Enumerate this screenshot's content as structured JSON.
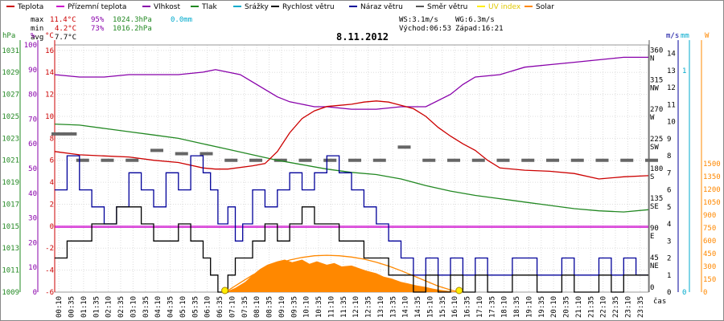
{
  "chart_data": {
    "type": "line",
    "title": "8.11.2012",
    "x_ticks": [
      "00:10",
      "00:35",
      "01:10",
      "01:35",
      "02:10",
      "02:35",
      "03:10",
      "03:35",
      "04:10",
      "04:35",
      "05:10",
      "05:35",
      "06:10",
      "06:35",
      "07:10",
      "07:35",
      "08:10",
      "08:35",
      "09:10",
      "09:35",
      "10:10",
      "10:35",
      "11:10",
      "11:35",
      "12:10",
      "12:35",
      "13:10",
      "13:35",
      "14:10",
      "14:35",
      "15:10",
      "15:35",
      "16:10",
      "16:35",
      "17:10",
      "17:35",
      "18:10",
      "18:35",
      "19:10",
      "19:35",
      "20:10",
      "20:35",
      "21:10",
      "21:35",
      "22:10",
      "22:35",
      "23:10",
      "23:35"
    ],
    "xlabel": "čas",
    "legend": [
      {
        "name": "Teplota",
        "color": "#cc0000"
      },
      {
        "name": "Přízemní teplota",
        "color": "#cc00cc"
      },
      {
        "name": "Vlhkost",
        "color": "#8800aa"
      },
      {
        "name": "Tlak",
        "color": "#228822"
      },
      {
        "name": "Srážky",
        "color": "#00aacc"
      },
      {
        "name": "Rychlost větru",
        "color": "#000000"
      },
      {
        "name": "Náraz větru",
        "color": "#000099"
      },
      {
        "name": "Směr větru",
        "color": "#555555"
      },
      {
        "name": "UV index",
        "color": "#ffee00"
      },
      {
        "name": "Solar",
        "color": "#ff8800"
      }
    ],
    "stats": {
      "max_label": "max",
      "max_temp": "11.4°C",
      "max_hum": "95%",
      "max_press": "1024.3hPa",
      "max_rain": "0.0mm",
      "min_label": "min",
      "min_temp": "4.2°C",
      "min_hum": "73%",
      "min_press": "1016.2hPa",
      "avg_label": "avg",
      "avg_temp": "7.7°C"
    },
    "wind_info": {
      "ws": "WS:3.1m/s",
      "wg": "WG:6.3m/s",
      "sunrise": "Východ:06:53",
      "sunset": "Západ:16:21"
    },
    "axes": {
      "hpa": {
        "unit": "hPa",
        "ticks": [
          "1031",
          "1029",
          "1027",
          "1025",
          "1023",
          "1021",
          "1019",
          "1017",
          "1015",
          "1013",
          "1011",
          "1009"
        ]
      },
      "pct": {
        "unit": "%",
        "ticks": [
          "100",
          "90",
          "80",
          "70",
          "60",
          "50",
          "40",
          "30",
          "20",
          "10",
          "0"
        ]
      },
      "degc": {
        "unit": "°C",
        "ticks": [
          "16",
          "14",
          "12",
          "10",
          "8",
          "6",
          "4",
          "2",
          "0",
          "-2",
          "-4",
          "-6"
        ]
      },
      "dir": {
        "ticks": [
          "360",
          "315",
          "270",
          "225",
          "180",
          "135",
          "90",
          "45",
          "0"
        ],
        "labels": [
          "N",
          "NW",
          "W",
          "SW",
          "S",
          "SE",
          "E",
          "NE",
          ""
        ]
      },
      "ms": {
        "unit": "m/s",
        "ticks": [
          "14",
          "13",
          "12",
          "11",
          "10",
          "9",
          "8",
          "7",
          "6",
          "5",
          "4",
          "3",
          "2",
          "1",
          "0"
        ]
      },
      "mm": {
        "unit": "mm",
        "ticks": [
          "1",
          "0"
        ]
      },
      "w": {
        "unit": "W",
        "ticks": [
          "1500",
          "1350",
          "1200",
          "1050",
          "900",
          "750",
          "600",
          "450",
          "300",
          "150",
          "0"
        ]
      }
    },
    "temperature": [
      [
        0,
        6.8
      ],
      [
        1,
        6.5
      ],
      [
        2,
        6.4
      ],
      [
        3,
        6.3
      ],
      [
        4,
        6.0
      ],
      [
        5,
        5.8
      ],
      [
        6,
        5.3
      ],
      [
        6.5,
        5.2
      ],
      [
        7,
        5.2
      ],
      [
        8,
        5.5
      ],
      [
        8.5,
        5.7
      ],
      [
        9,
        6.8
      ],
      [
        9.5,
        8.5
      ],
      [
        10,
        9.8
      ],
      [
        10.5,
        10.5
      ],
      [
        11,
        10.9
      ],
      [
        11.5,
        11.0
      ],
      [
        12,
        11.1
      ],
      [
        12.5,
        11.3
      ],
      [
        13,
        11.4
      ],
      [
        13.5,
        11.3
      ],
      [
        14,
        11.0
      ],
      [
        14.5,
        10.7
      ],
      [
        15,
        10.0
      ],
      [
        15.5,
        9.0
      ],
      [
        16,
        8.2
      ],
      [
        16.5,
        7.5
      ],
      [
        17,
        6.9
      ],
      [
        17.5,
        6.0
      ],
      [
        18,
        5.3
      ],
      [
        19,
        5.1
      ],
      [
        20,
        5.0
      ],
      [
        21,
        4.8
      ],
      [
        22,
        4.3
      ],
      [
        23,
        4.5
      ],
      [
        24,
        4.6
      ]
    ],
    "humidity": [
      [
        0,
        88
      ],
      [
        1,
        87
      ],
      [
        2,
        87
      ],
      [
        3,
        88
      ],
      [
        4,
        88
      ],
      [
        5,
        88
      ],
      [
        6,
        89
      ],
      [
        6.5,
        90
      ],
      [
        7,
        89
      ],
      [
        7.5,
        88
      ],
      [
        8,
        85
      ],
      [
        8.5,
        82
      ],
      [
        9,
        79
      ],
      [
        9.5,
        77
      ],
      [
        10,
        76
      ],
      [
        10.5,
        75
      ],
      [
        11,
        75
      ],
      [
        12,
        74
      ],
      [
        13,
        74
      ],
      [
        14,
        75
      ],
      [
        15,
        75
      ],
      [
        16,
        80
      ],
      [
        16.5,
        84
      ],
      [
        17,
        87
      ],
      [
        18,
        88
      ],
      [
        19,
        91
      ],
      [
        20,
        92
      ],
      [
        21,
        93
      ],
      [
        22,
        94
      ],
      [
        23,
        95
      ],
      [
        24,
        95
      ]
    ],
    "pressure": [
      [
        0,
        1024.3
      ],
      [
        1,
        1024.2
      ],
      [
        2,
        1023.9
      ],
      [
        3,
        1023.6
      ],
      [
        4,
        1023.3
      ],
      [
        5,
        1023.0
      ],
      [
        6,
        1022.5
      ],
      [
        7,
        1022.0
      ],
      [
        8,
        1021.5
      ],
      [
        9,
        1021.0
      ],
      [
        10,
        1020.6
      ],
      [
        11,
        1020.2
      ],
      [
        12,
        1019.9
      ],
      [
        13,
        1019.7
      ],
      [
        14,
        1019.3
      ],
      [
        15,
        1018.7
      ],
      [
        16,
        1018.2
      ],
      [
        17,
        1017.8
      ],
      [
        18,
        1017.5
      ],
      [
        19,
        1017.2
      ],
      [
        20,
        1016.9
      ],
      [
        21,
        1016.6
      ],
      [
        22,
        1016.4
      ],
      [
        23,
        1016.3
      ],
      [
        24,
        1016.5
      ]
    ],
    "ground_temperature_const": -0.1,
    "wind_speed": [
      [
        0,
        2
      ],
      [
        0.5,
        3
      ],
      [
        1,
        3
      ],
      [
        1.5,
        4
      ],
      [
        2,
        4
      ],
      [
        2.5,
        5
      ],
      [
        3,
        5
      ],
      [
        3.5,
        4
      ],
      [
        4,
        3
      ],
      [
        4.5,
        3
      ],
      [
        5,
        4
      ],
      [
        5.5,
        3
      ],
      [
        6,
        2
      ],
      [
        6.3,
        1
      ],
      [
        6.6,
        0
      ],
      [
        7,
        1
      ],
      [
        7.3,
        2
      ],
      [
        7.6,
        2
      ],
      [
        8,
        3
      ],
      [
        8.5,
        4
      ],
      [
        9,
        3
      ],
      [
        9.5,
        4
      ],
      [
        10,
        5
      ],
      [
        10.5,
        4
      ],
      [
        11,
        4
      ],
      [
        11.5,
        3
      ],
      [
        12,
        3
      ],
      [
        12.5,
        2
      ],
      [
        13,
        2
      ],
      [
        13.5,
        1
      ],
      [
        14,
        1
      ],
      [
        14.5,
        0
      ],
      [
        15,
        1
      ],
      [
        15.5,
        0
      ],
      [
        16,
        1
      ],
      [
        16.5,
        0
      ],
      [
        17,
        1
      ],
      [
        17.5,
        0
      ],
      [
        18,
        0
      ],
      [
        18.5,
        1
      ],
      [
        19,
        1
      ],
      [
        19.5,
        0
      ],
      [
        20,
        0
      ],
      [
        20.5,
        1
      ],
      [
        21,
        0
      ],
      [
        21.5,
        0
      ],
      [
        22,
        1
      ],
      [
        22.5,
        0
      ],
      [
        23,
        1
      ],
      [
        23.5,
        1
      ],
      [
        24,
        1
      ]
    ],
    "wind_gust": [
      [
        0,
        6
      ],
      [
        0.5,
        8
      ],
      [
        1,
        6
      ],
      [
        1.5,
        5
      ],
      [
        2,
        4
      ],
      [
        2.5,
        5
      ],
      [
        3,
        7
      ],
      [
        3.5,
        6
      ],
      [
        4,
        5
      ],
      [
        4.5,
        7
      ],
      [
        5,
        6
      ],
      [
        5.5,
        8
      ],
      [
        6,
        7
      ],
      [
        6.3,
        6
      ],
      [
        6.6,
        4
      ],
      [
        7,
        5
      ],
      [
        7.3,
        3
      ],
      [
        7.6,
        4
      ],
      [
        8,
        6
      ],
      [
        8.5,
        5
      ],
      [
        9,
        6
      ],
      [
        9.5,
        7
      ],
      [
        10,
        6
      ],
      [
        10.5,
        7
      ],
      [
        11,
        8
      ],
      [
        11.5,
        7
      ],
      [
        12,
        6
      ],
      [
        12.5,
        5
      ],
      [
        13,
        4
      ],
      [
        13.5,
        3
      ],
      [
        14,
        2
      ],
      [
        14.5,
        1
      ],
      [
        15,
        2
      ],
      [
        15.5,
        1
      ],
      [
        16,
        2
      ],
      [
        16.5,
        1
      ],
      [
        17,
        2
      ],
      [
        17.5,
        1
      ],
      [
        18,
        1
      ],
      [
        18.5,
        2
      ],
      [
        19,
        2
      ],
      [
        19.5,
        1
      ],
      [
        20,
        1
      ],
      [
        20.5,
        2
      ],
      [
        21,
        1
      ],
      [
        21.5,
        1
      ],
      [
        22,
        2
      ],
      [
        22.5,
        1
      ],
      [
        23,
        2
      ],
      [
        23.5,
        1
      ],
      [
        24,
        1
      ]
    ],
    "wind_direction": [
      [
        0,
        240
      ],
      [
        0.5,
        240
      ],
      [
        1,
        200
      ],
      [
        2,
        200
      ],
      [
        3,
        200
      ],
      [
        4,
        215
      ],
      [
        5,
        210
      ],
      [
        6,
        210
      ],
      [
        7,
        200
      ],
      [
        8,
        200
      ],
      [
        9,
        200
      ],
      [
        10,
        200
      ],
      [
        11,
        200
      ],
      [
        12,
        200
      ],
      [
        13,
        200
      ],
      [
        14,
        220
      ],
      [
        15,
        200
      ],
      [
        16,
        200
      ],
      [
        17,
        200
      ],
      [
        18,
        200
      ],
      [
        19,
        200
      ],
      [
        20,
        200
      ],
      [
        21,
        200
      ],
      [
        22,
        200
      ],
      [
        23,
        200
      ],
      [
        24,
        200
      ]
    ],
    "solar": [
      [
        6.9,
        0
      ],
      [
        7.3,
        50
      ],
      [
        7.7,
        120
      ],
      [
        8,
        200
      ],
      [
        8.3,
        270
      ],
      [
        8.6,
        320
      ],
      [
        9,
        360
      ],
      [
        9.3,
        380
      ],
      [
        9.6,
        350
      ],
      [
        10,
        380
      ],
      [
        10.3,
        330
      ],
      [
        10.6,
        360
      ],
      [
        11,
        320
      ],
      [
        11.3,
        340
      ],
      [
        11.6,
        300
      ],
      [
        12,
        310
      ],
      [
        12.3,
        280
      ],
      [
        12.6,
        250
      ],
      [
        13,
        220
      ],
      [
        13.3,
        180
      ],
      [
        13.6,
        160
      ],
      [
        14,
        120
      ],
      [
        14.3,
        100
      ],
      [
        14.6,
        80
      ],
      [
        15,
        60
      ],
      [
        15.3,
        40
      ],
      [
        15.6,
        25
      ],
      [
        16,
        10
      ],
      [
        16.35,
        0
      ]
    ],
    "solar_theoretical": [
      [
        6.9,
        0
      ],
      [
        7.5,
        110
      ],
      [
        8,
        200
      ],
      [
        8.5,
        270
      ],
      [
        9,
        330
      ],
      [
        9.5,
        375
      ],
      [
        10,
        405
      ],
      [
        10.5,
        425
      ],
      [
        11,
        430
      ],
      [
        11.5,
        425
      ],
      [
        12,
        410
      ],
      [
        12.5,
        385
      ],
      [
        13,
        350
      ],
      [
        13.5,
        305
      ],
      [
        14,
        250
      ],
      [
        14.5,
        190
      ],
      [
        15,
        130
      ],
      [
        15.5,
        70
      ],
      [
        16,
        25
      ],
      [
        16.35,
        0
      ]
    ]
  }
}
